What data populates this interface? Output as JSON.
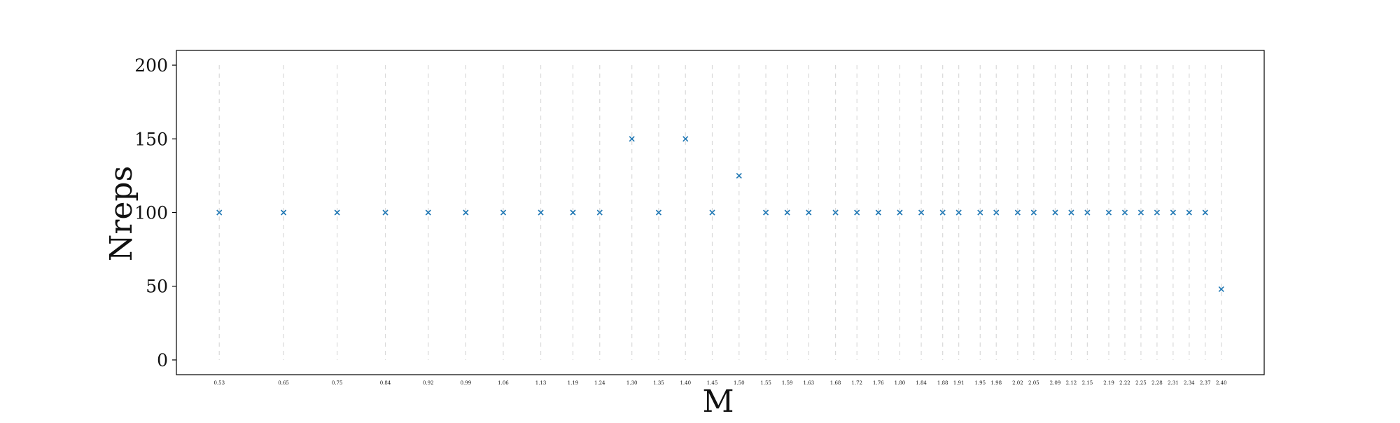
{
  "chart_data": {
    "type": "scatter",
    "title": "",
    "xlabel": "M",
    "ylabel": "Nreps",
    "ylim": [
      -10,
      210
    ],
    "yticks": [
      0,
      50,
      100,
      150,
      200
    ],
    "marker": "x",
    "grid": "vertical dashed lines at each x tick",
    "colors": {
      "marker": "#1f77b4",
      "grid": "#d9d9d9",
      "axis": "#000000"
    },
    "xlim": [
      0.45,
      2.48
    ],
    "x_tick_labels": [
      "0.53",
      "0.65",
      "0.75",
      "0.84",
      "0.92",
      "0.99",
      "1.06",
      "1.13",
      "1.19",
      "1.24",
      "1.30",
      "1.35",
      "1.40",
      "1.45",
      "1.50",
      "1.55",
      "1.59",
      "1.63",
      "1.68",
      "1.72",
      "1.76",
      "1.80",
      "1.84",
      "1.88",
      "1.91",
      "1.95",
      "1.98",
      "2.02",
      "2.05",
      "2.09",
      "2.12",
      "2.15",
      "2.19",
      "2.22",
      "2.25",
      "2.28",
      "2.31",
      "2.34",
      "2.37",
      "2.40"
    ],
    "x": [
      0.53,
      0.65,
      0.75,
      0.84,
      0.92,
      0.99,
      1.06,
      1.13,
      1.19,
      1.24,
      1.3,
      1.35,
      1.4,
      1.45,
      1.5,
      1.55,
      1.59,
      1.63,
      1.68,
      1.72,
      1.76,
      1.8,
      1.84,
      1.88,
      1.91,
      1.95,
      1.98,
      2.02,
      2.05,
      2.09,
      2.12,
      2.15,
      2.19,
      2.22,
      2.25,
      2.28,
      2.31,
      2.34,
      2.37,
      2.4
    ],
    "y": [
      100,
      100,
      100,
      100,
      100,
      100,
      100,
      100,
      100,
      100,
      150,
      100,
      150,
      100,
      125,
      100,
      100,
      100,
      100,
      100,
      100,
      100,
      100,
      100,
      100,
      100,
      100,
      100,
      100,
      100,
      100,
      100,
      100,
      100,
      100,
      100,
      100,
      100,
      100,
      48
    ]
  }
}
